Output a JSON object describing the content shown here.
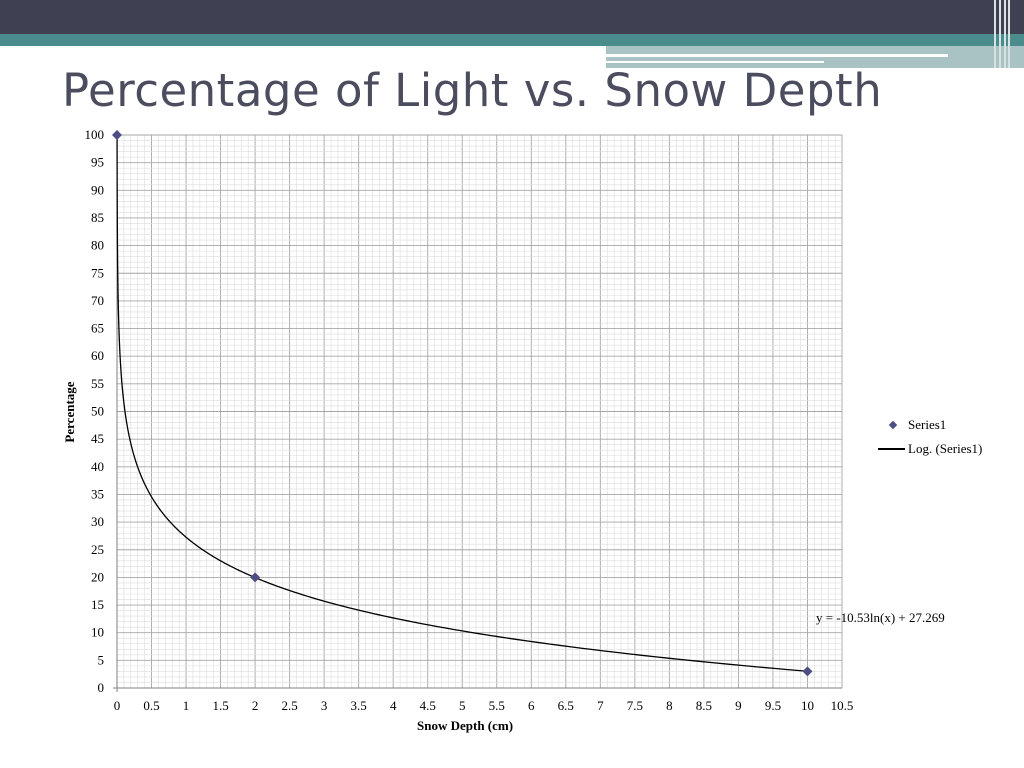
{
  "slide": {
    "title": "Percentage of Light vs. Snow Depth",
    "colors": {
      "dark_bar": "#3f4052",
      "teal_bar": "#4a8b8c",
      "light_bar": "#a9c2c3",
      "title_text": "#4b4d5f"
    }
  },
  "chart_data": {
    "type": "scatter",
    "title": "",
    "xlabel": "Snow Depth (cm)",
    "ylabel": "Percentage",
    "xlim": [
      0,
      10.5
    ],
    "ylim": [
      0,
      100
    ],
    "x_ticks": [
      "0",
      "0.5",
      "1",
      "1.5",
      "2",
      "2.5",
      "3",
      "3.5",
      "4",
      "4.5",
      "5",
      "5.5",
      "6",
      "6.5",
      "7",
      "7.5",
      "8",
      "8.5",
      "9",
      "9.5",
      "10",
      "10.5"
    ],
    "y_ticks": [
      "0",
      "5",
      "10",
      "15",
      "20",
      "25",
      "30",
      "35",
      "40",
      "45",
      "50",
      "55",
      "60",
      "65",
      "70",
      "75",
      "80",
      "85",
      "90",
      "95",
      "100"
    ],
    "grid": true,
    "legend_position": "right",
    "series": [
      {
        "name": "Series1",
        "marker": "diamond",
        "color": "#4e4e85",
        "points": [
          {
            "x": 0,
            "y": 100
          },
          {
            "x": 2,
            "y": 20
          },
          {
            "x": 10,
            "y": 3
          }
        ]
      }
    ],
    "trendline": {
      "name": "Log. (Series1)",
      "type": "logarithmic",
      "a": -10.53,
      "b": 27.269,
      "equation": "y = -10.53ln(x) + 27.269",
      "color": "#000000"
    }
  }
}
